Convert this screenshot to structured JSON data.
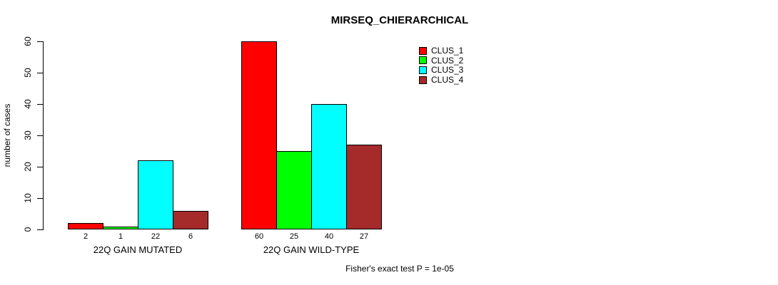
{
  "chart_data": {
    "type": "bar",
    "title": "MIRSEQ_CHIERARCHICAL",
    "ylabel": "number of cases",
    "xlabel": "",
    "ylim": [
      0,
      60
    ],
    "yticks": [
      0,
      10,
      20,
      30,
      40,
      50,
      60
    ],
    "categories": [
      "22Q GAIN MUTATED",
      "22Q GAIN WILD-TYPE"
    ],
    "series": [
      {
        "name": "CLUS_1",
        "color": "#FF0000",
        "values": [
          2,
          60
        ]
      },
      {
        "name": "CLUS_2",
        "color": "#00FF00",
        "values": [
          1,
          25
        ]
      },
      {
        "name": "CLUS_3",
        "color": "#00FFFF",
        "values": [
          22,
          40
        ]
      },
      {
        "name": "CLUS_4",
        "color": "#A52A2A",
        "values": [
          6,
          27
        ]
      }
    ],
    "bar_value_labels_shown": true,
    "legend_position": "top-right",
    "grid": false,
    "annotation": "Fisher's exact test P = 1e-05",
    "axis_color": "#000000",
    "background_color": "#FFFFFF"
  }
}
